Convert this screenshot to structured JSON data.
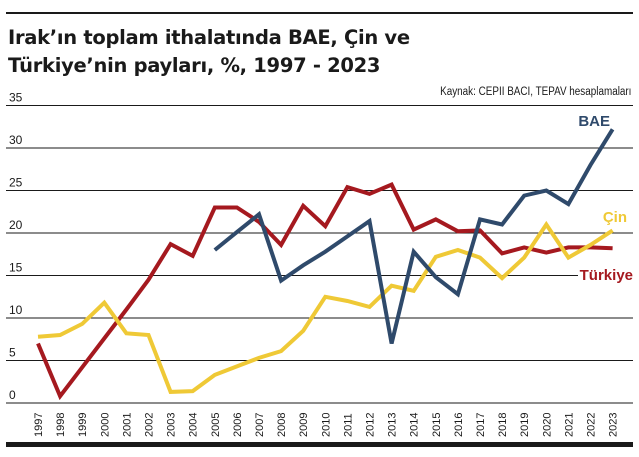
{
  "header": {
    "title_line1": "Irak’ın toplam ithalatında BAE, Çin ve",
    "title_line2": "Türkiye’nin payları, %, 1997 - 2023",
    "source": "Kaynak: CEPII BACI, TEPAV hesaplamaları"
  },
  "colors": {
    "bae": "#2f4a6b",
    "cin": "#efc936",
    "turkiye": "#a5191f",
    "grid": "#1a1a1a"
  },
  "chart_data": {
    "type": "line",
    "title": "Irak’ın toplam ithalatında BAE, Çin ve Türkiye’nin payları, %, 1997 - 2023",
    "xlabel": "",
    "ylabel": "%",
    "ylim": [
      0,
      35
    ],
    "yticks": [
      0,
      5,
      10,
      15,
      20,
      25,
      30,
      35
    ],
    "grid": true,
    "legend_position": "inline-right",
    "x": [
      1997,
      1998,
      1999,
      2000,
      2001,
      2002,
      2003,
      2004,
      2005,
      2006,
      2007,
      2008,
      2009,
      2010,
      2011,
      2012,
      2013,
      2014,
      2015,
      2016,
      2017,
      2018,
      2019,
      2020,
      2021,
      2022,
      2023
    ],
    "series": [
      {
        "name": "Türkiye",
        "color": "#a5191f",
        "values": [
          7.0,
          0.8,
          4.2,
          7.6,
          11.0,
          14.5,
          18.7,
          17.3,
          23.0,
          23.0,
          21.3,
          18.6,
          23.2,
          20.8,
          25.4,
          24.6,
          25.7,
          20.4,
          21.6,
          20.2,
          20.3,
          17.6,
          18.3,
          17.7,
          18.3,
          18.3,
          18.2
        ]
      },
      {
        "name": "Çin",
        "color": "#efc936",
        "values": [
          7.8,
          8.0,
          9.3,
          11.8,
          8.2,
          8.0,
          1.3,
          1.4,
          3.3,
          4.3,
          5.3,
          6.1,
          8.5,
          12.5,
          12.0,
          11.3,
          13.8,
          13.2,
          17.2,
          18.0,
          17.1,
          14.7,
          17.1,
          21.0,
          17.1,
          18.6,
          20.3
        ]
      },
      {
        "name": "BAE",
        "color": "#2f4a6b",
        "values": [
          null,
          null,
          null,
          null,
          null,
          null,
          null,
          null,
          18.0,
          20.1,
          22.2,
          14.4,
          16.2,
          17.8,
          19.6,
          21.4,
          7.0,
          17.8,
          14.8,
          12.8,
          21.6,
          21.0,
          24.4,
          25.0,
          23.4,
          28.0,
          32.2
        ]
      }
    ]
  }
}
